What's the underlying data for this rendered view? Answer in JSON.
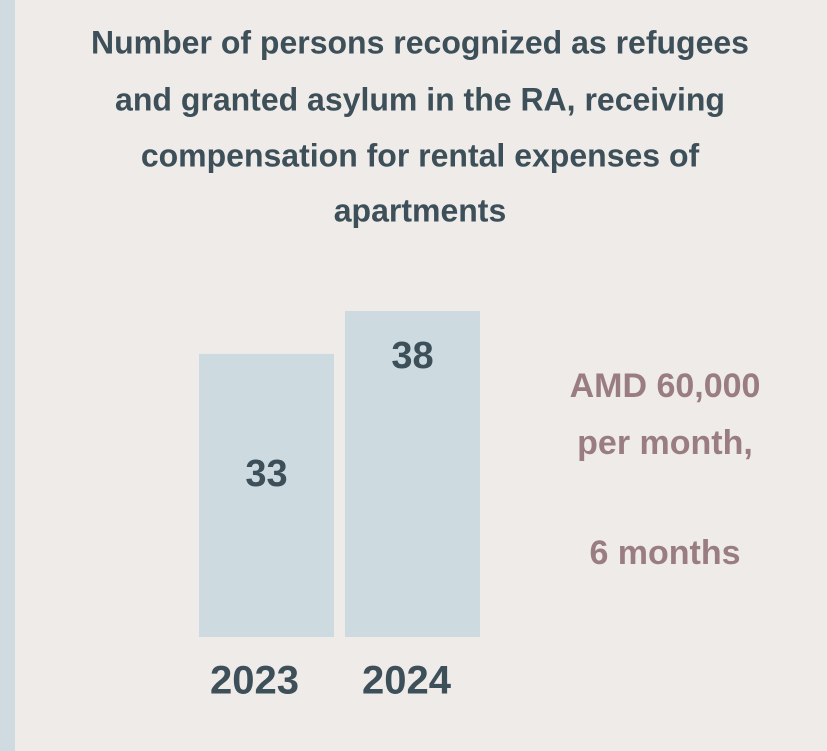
{
  "chart_data": {
    "type": "bar",
    "title": [
      "Number of persons recognized as refugees",
      "and granted asylum in the RA, receiving",
      "compensation for rental expenses of",
      "apartments"
    ],
    "categories": [
      "2023",
      "2024"
    ],
    "values": [
      33,
      38
    ],
    "color": "#cddbe0",
    "annotations": [
      "AMD 60,000",
      "per month,",
      "6 months"
    ],
    "annotation_color": "#9a7d80"
  }
}
